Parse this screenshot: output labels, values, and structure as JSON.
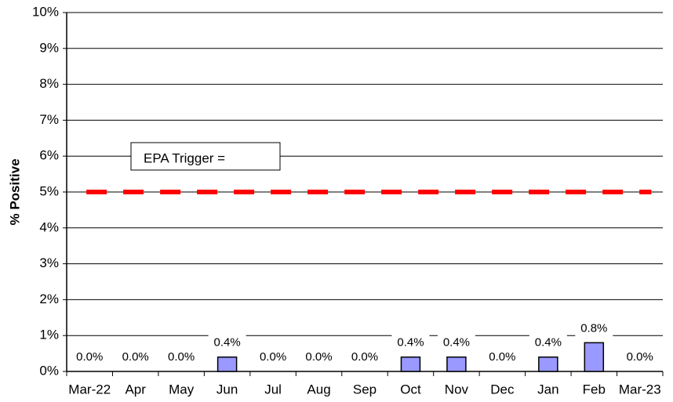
{
  "chart_data": {
    "type": "bar",
    "y_label": "% Positive",
    "annotation": "EPA Trigger =",
    "categories": [
      "Mar-22",
      "Apr",
      "May",
      "Jun",
      "Jul",
      "Aug",
      "Sep",
      "Oct",
      "Nov",
      "Dec",
      "Jan",
      "Feb",
      "Mar-23"
    ],
    "values": [
      0,
      0,
      0,
      0.4,
      0,
      0,
      0,
      0.4,
      0.4,
      0,
      0.4,
      0.8,
      0
    ],
    "value_labels": [
      "0.0%",
      "0.0%",
      "0.0%",
      "0.4%",
      "0.0%",
      "0.0%",
      "0.0%",
      "0.4%",
      "0.4%",
      "0.0%",
      "0.4%",
      "0.8%",
      "0.0%"
    ],
    "color": "#9999ff",
    "reference_line": {
      "value": 5,
      "color": "#ff0000"
    },
    "ylim": [
      0,
      10
    ],
    "yticks": [
      {
        "value": 0,
        "label": "0%"
      },
      {
        "value": 1,
        "label": "1%"
      },
      {
        "value": 2,
        "label": "2%"
      },
      {
        "value": 3,
        "label": "3%"
      },
      {
        "value": 4,
        "label": "4%"
      },
      {
        "value": 5,
        "label": "5%"
      },
      {
        "value": 6,
        "label": "6%"
      },
      {
        "value": 7,
        "label": "7%"
      },
      {
        "value": 8,
        "label": "8%"
      },
      {
        "value": 9,
        "label": "9%"
      },
      {
        "value": 10,
        "label": "10%"
      }
    ],
    "grid": true
  }
}
